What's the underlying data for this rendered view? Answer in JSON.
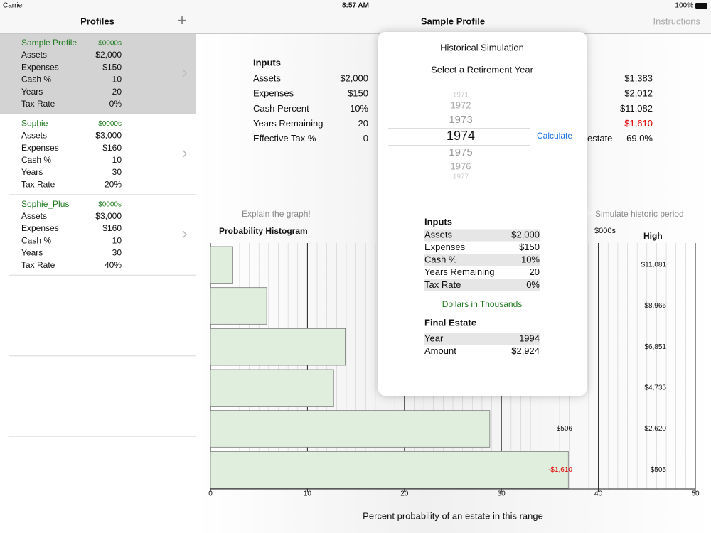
{
  "status_bar": {
    "carrier": "Carrier",
    "time": "8:57 AM",
    "battery": "100%"
  },
  "sidebar": {
    "title": "Profiles",
    "add": "+",
    "selected": 0,
    "profiles": [
      {
        "name": "Sample Profile",
        "unit": "$0000s",
        "rows": [
          [
            "Assets",
            "$2,000"
          ],
          [
            "Expenses",
            "$150"
          ],
          [
            "Cash %",
            "10"
          ],
          [
            "Years",
            "20"
          ],
          [
            "Tax Rate",
            "0%"
          ]
        ]
      },
      {
        "name": "Sophie",
        "unit": "$0000s",
        "rows": [
          [
            "Assets",
            "$3,000"
          ],
          [
            "Expenses",
            "$160"
          ],
          [
            "Cash %",
            "10"
          ],
          [
            "Years",
            "30"
          ],
          [
            "Tax Rate",
            "20%"
          ]
        ]
      },
      {
        "name": "Sophie_Plus",
        "unit": "$0000s",
        "rows": [
          [
            "Assets",
            "$3,000"
          ],
          [
            "Expenses",
            "$160"
          ],
          [
            "Cash %",
            "10"
          ],
          [
            "Years",
            "30"
          ],
          [
            "Tax Rate",
            "40%"
          ]
        ]
      }
    ]
  },
  "header": {
    "title": "Sample Profile",
    "action": "Instructions"
  },
  "inputs": {
    "title": "Inputs",
    "rows": [
      [
        "Assets",
        "$2,000"
      ],
      [
        "Expenses",
        "$150"
      ],
      [
        "Cash Percent",
        "10%"
      ],
      [
        "Years Remaining",
        "20"
      ],
      [
        "Effective Tax %",
        "0"
      ]
    ]
  },
  "results": {
    "rows": [
      {
        "value": "$1,383"
      },
      {
        "value": "$2,012"
      },
      {
        "value": "$11,082"
      },
      {
        "value": "-$1,610"
      },
      {
        "label": "estate",
        "value": "69.0%"
      }
    ]
  },
  "links": {
    "explain": "Explain the graph!",
    "simulate": "Simulate historic period"
  },
  "chart_data": {
    "type": "bar",
    "orientation": "horizontal",
    "title": "Probability Histogram",
    "xlabel": "Percent probability of an estate in this range",
    "unit_label": "$000s",
    "high_title": "High",
    "values": [
      2.3,
      5.8,
      13.9,
      12.7,
      28.8,
      36.9
    ],
    "high_labels": [
      "$11,081",
      "$8,966",
      "$6,851",
      "$4,735",
      "$2,620",
      "$505"
    ],
    "low_labels": [
      null,
      null,
      null,
      null,
      "$506",
      "-$1,610"
    ],
    "xlim": [
      0,
      50
    ],
    "xticks": [
      0,
      10,
      20,
      30,
      40,
      50
    ],
    "minor_grid_step": 1,
    "color": "#dfeedd",
    "edge_color": "#7a7a7a"
  },
  "popover": {
    "title": "Historical Simulation",
    "subtitle": "Select a Retirement Year",
    "years": [
      "1971",
      "1972",
      "1973",
      "1974",
      "1975",
      "1976",
      "1977"
    ],
    "selected": 3,
    "button": "Calculate",
    "inputs_title": "Inputs",
    "inputs": [
      [
        "Assets",
        "$2,000"
      ],
      [
        "Expenses",
        "$150"
      ],
      [
        "Cash %",
        "10%"
      ],
      [
        "Years Remaining",
        "20"
      ],
      [
        "Tax Rate",
        "0%"
      ]
    ],
    "note": "Dollars in  Thousands",
    "estate_title": "Final Estate",
    "estate": [
      [
        "Year",
        "1994"
      ],
      [
        "Amount",
        "$2,924"
      ]
    ]
  }
}
